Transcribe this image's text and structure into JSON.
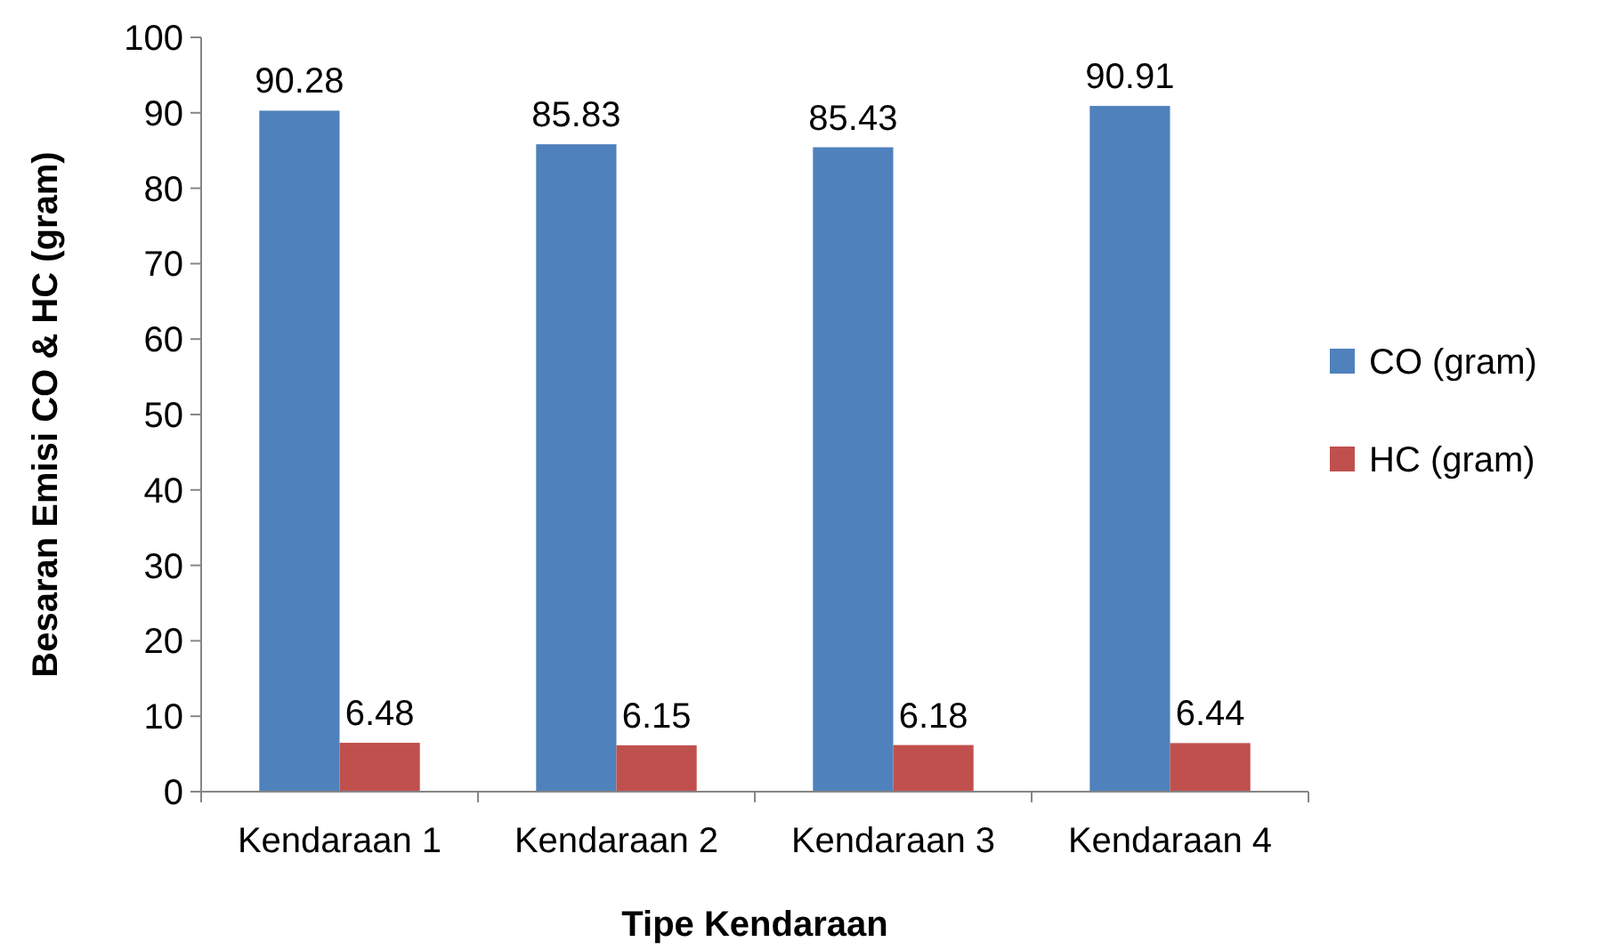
{
  "chart_data": {
    "type": "bar",
    "xlabel": "Tipe Kendaraan",
    "ylabel": "Besaran Emisi CO & HC (gram)",
    "categories": [
      "Kendaraan 1",
      "Kendaraan 2",
      "Kendaraan 3",
      "Kendaraan 4"
    ],
    "series": [
      {
        "name": "CO (gram)",
        "color": "#4f81bd",
        "values": [
          90.28,
          85.83,
          85.43,
          90.91
        ]
      },
      {
        "name": "HC (gram)",
        "color": "#c0504d",
        "values": [
          6.48,
          6.15,
          6.18,
          6.44
        ]
      }
    ],
    "ylim": [
      0,
      100
    ],
    "yticks": [
      0,
      10,
      20,
      30,
      40,
      50,
      60,
      70,
      80,
      90,
      100
    ],
    "grid": false,
    "legend": "right",
    "data_labels": true
  }
}
